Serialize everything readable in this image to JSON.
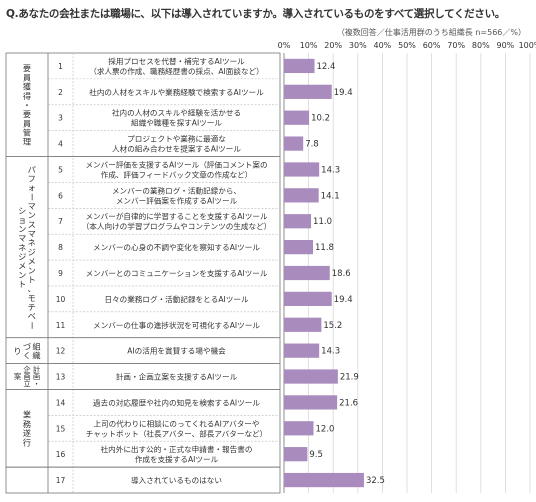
{
  "question": "Q.あなたの会社または職場に、以下は導入されていますか。導入されているものをすべて選択してください。",
  "note": "（複数回答／仕事活用群のうち組織長 n=566／%）",
  "colors": {
    "bar": "#a98cbd",
    "frame": "#777777",
    "grid": "#d8d8d8",
    "text": "#333333",
    "rowline": "#bbbbbb"
  },
  "chart_data": {
    "type": "bar",
    "orientation": "horizontal",
    "xlim": [
      0,
      100
    ],
    "x_ticks": [
      "0%",
      "10%",
      "20%",
      "30%",
      "40%",
      "50%",
      "60%",
      "70%",
      "80%",
      "90%",
      "100%"
    ],
    "groups": [
      {
        "label": "要員獲得・要員管理",
        "rows": [
          1,
          4
        ]
      },
      {
        "label": "パフォーマンスマネジメント、モチベーションマネジメント",
        "rows": [
          5,
          11
        ]
      },
      {
        "label": "組織づくり",
        "rows": [
          12,
          12
        ]
      },
      {
        "label": "計画・企画立案",
        "rows": [
          13,
          13
        ]
      },
      {
        "label": "業務遂行",
        "rows": [
          14,
          16
        ]
      },
      {
        "label": "",
        "rows": [
          17,
          17
        ]
      }
    ],
    "categories": [
      {
        "num": "1",
        "lines": [
          "採用プロセスを代替・補完するAIツール",
          "（求人票の作成、職務経歴書の採点、AI面談など）"
        ]
      },
      {
        "num": "2",
        "lines": [
          "社内の人材をスキルや業務経験で検索するAIツール"
        ]
      },
      {
        "num": "3",
        "lines": [
          "社内の人材のスキルや経験を活かせる",
          "組織や職種を探すAIツール"
        ]
      },
      {
        "num": "4",
        "lines": [
          "プロジェクトや業務に最適な",
          "人材の組み合わせを提案するAIツール"
        ]
      },
      {
        "num": "5",
        "lines": [
          "メンバー評価を支援するAIツール（評価コメント案の",
          "作成、評価フィードバック文章の作成など）"
        ]
      },
      {
        "num": "6",
        "lines": [
          "メンバーの業務ログ・活動記録から、",
          "メンバー評価案を作成するAIツール"
        ]
      },
      {
        "num": "7",
        "lines": [
          "メンバーが自律的に学習することを支援するAIツール",
          "（本人向けの学習プログラムやコンテンツの生成など）"
        ]
      },
      {
        "num": "8",
        "lines": [
          "メンバーの心身の不調や変化を察知するAIツール"
        ]
      },
      {
        "num": "9",
        "lines": [
          "メンバーとのコミュニケーションを支援するAIツール"
        ]
      },
      {
        "num": "10",
        "lines": [
          "日々の業務ログ・活動記録をとるAIツール"
        ]
      },
      {
        "num": "11",
        "lines": [
          "メンバーの仕事の進捗状況を可視化するAIツール"
        ]
      },
      {
        "num": "12",
        "lines": [
          "AIの活用を賞賛する場や機会"
        ]
      },
      {
        "num": "13",
        "lines": [
          "計画・企画立案を支援するAIツール"
        ]
      },
      {
        "num": "14",
        "lines": [
          "過去の対応履歴や社内の知見を検索するAIツール"
        ]
      },
      {
        "num": "15",
        "lines": [
          "上司の代わりに相談にのってくれるAIアバターや",
          "チャットボット（社長アバター、部長アバターなど）"
        ]
      },
      {
        "num": "16",
        "lines": [
          "社内外に出す公的・正式な申請書・報告書の",
          "作成を支援するAIツール"
        ]
      },
      {
        "num": "17",
        "lines": [
          "導入されているものはない"
        ]
      }
    ],
    "values": [
      12.4,
      19.4,
      10.2,
      7.8,
      14.3,
      14.1,
      11.0,
      11.8,
      18.6,
      19.4,
      15.2,
      14.3,
      21.9,
      21.6,
      12.0,
      9.5,
      32.5
    ],
    "value_labels": [
      "12.4",
      "19.4",
      "10.2",
      "7.8",
      "14.3",
      "14.1",
      "11.0",
      "11.8",
      "18.6",
      "19.4",
      "15.2",
      "14.3",
      "21.9",
      "21.6",
      "12.0",
      "9.5",
      "32.5"
    ]
  }
}
